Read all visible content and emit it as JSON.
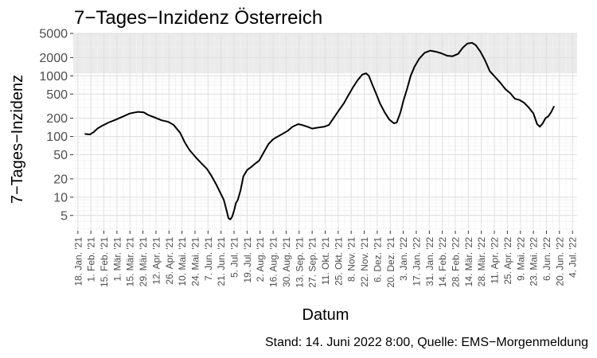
{
  "chart_data": {
    "type": "line",
    "title": "7−Tages−Inzidenz Österreich",
    "xlabel": "Datum",
    "ylabel": "7−Tages−Inzidenz",
    "caption": "Stand: 14. Juni 2022 8:00, Quelle: EMS−Morgenmeldung",
    "y_scale": "log",
    "ylim": [
      2.8,
      5000
    ],
    "xlim": [
      "2021-01-13",
      "2022-07-09"
    ],
    "grid": true,
    "legend": "none",
    "shaded_band": {
      "from": 1100,
      "to": 5000,
      "color": "#ebebeb"
    },
    "y_ticks": [
      5,
      10,
      20,
      50,
      100,
      200,
      500,
      1000,
      2000,
      5000
    ],
    "y_tick_labels": [
      "5",
      "10",
      "20",
      "50",
      "100",
      "200",
      "500",
      "1000",
      "2000",
      "5000"
    ],
    "x_ticks": [
      "2021-01-18",
      "2021-02-01",
      "2021-02-15",
      "2021-03-01",
      "2021-03-15",
      "2021-03-29",
      "2021-04-12",
      "2021-04-26",
      "2021-05-10",
      "2021-05-24",
      "2021-06-07",
      "2021-06-21",
      "2021-07-05",
      "2021-07-19",
      "2021-08-02",
      "2021-08-16",
      "2021-08-30",
      "2021-09-13",
      "2021-09-27",
      "2021-10-11",
      "2021-10-25",
      "2021-11-08",
      "2021-11-22",
      "2021-12-06",
      "2021-12-20",
      "2022-01-03",
      "2022-01-17",
      "2022-01-31",
      "2022-02-14",
      "2022-02-28",
      "2022-03-14",
      "2022-03-28",
      "2022-04-11",
      "2022-04-25",
      "2022-05-09",
      "2022-05-23",
      "2022-06-06",
      "2022-06-20",
      "2022-07-04"
    ],
    "x_tick_labels": [
      "18. Jan. '21",
      "1. Feb. '21",
      "15. Feb. '21",
      "1. Mär. '21",
      "15. Mär. '21",
      "29. Mär. '21",
      "12. Apr. '21",
      "26. Apr. '21",
      "10. Mai. '21",
      "24. Mai. '21",
      "7. Jun. '21",
      "21. Jun. '21",
      "5. Jul. '21",
      "19. Jul. '21",
      "2. Aug. '21",
      "16. Aug. '21",
      "30. Aug. '21",
      "13. Sep. '21",
      "27. Sep. '21",
      "11. Okt. '21",
      "25. Okt. '21",
      "8. Nov. '21",
      "22. Nov. '21",
      "6. Dez. '21",
      "20. Dez. '21",
      "3. Jan. '22",
      "17. Jan. '22",
      "31. Jan. '22",
      "14. Feb. '22",
      "28. Feb. '22",
      "14. Mär. '22",
      "28. Mär. '22",
      "11. Apr. '22",
      "25. Apr. '22",
      "9. Mai. '22",
      "23. Mai. '22",
      "6. Jun. '22",
      "20. Jun. '22",
      "4. Jul. '22"
    ],
    "series": [
      {
        "color": "#000000",
        "points": [
          [
            "2021-01-26",
            110
          ],
          [
            "2021-01-31",
            108
          ],
          [
            "2021-02-04",
            118
          ],
          [
            "2021-02-08",
            135
          ],
          [
            "2021-02-13",
            150
          ],
          [
            "2021-02-20",
            170
          ],
          [
            "2021-02-28",
            190
          ],
          [
            "2021-03-08",
            215
          ],
          [
            "2021-03-15",
            240
          ],
          [
            "2021-03-24",
            255
          ],
          [
            "2021-03-30",
            250
          ],
          [
            "2021-04-04",
            225
          ],
          [
            "2021-04-11",
            205
          ],
          [
            "2021-04-18",
            185
          ],
          [
            "2021-04-25",
            175
          ],
          [
            "2021-05-01",
            155
          ],
          [
            "2021-05-08",
            115
          ],
          [
            "2021-05-13",
            80
          ],
          [
            "2021-05-18",
            60
          ],
          [
            "2021-05-25",
            45
          ],
          [
            "2021-05-31",
            36
          ],
          [
            "2021-06-06",
            29
          ],
          [
            "2021-06-11",
            22
          ],
          [
            "2021-06-16",
            16
          ],
          [
            "2021-06-20",
            12
          ],
          [
            "2021-06-24",
            9
          ],
          [
            "2021-06-27",
            6
          ],
          [
            "2021-06-29",
            4.5
          ],
          [
            "2021-07-01",
            4.3
          ],
          [
            "2021-07-03",
            4.8
          ],
          [
            "2021-07-05",
            6
          ],
          [
            "2021-07-07",
            8
          ],
          [
            "2021-07-09",
            9
          ],
          [
            "2021-07-12",
            13
          ],
          [
            "2021-07-15",
            22
          ],
          [
            "2021-07-19",
            28
          ],
          [
            "2021-07-23",
            31
          ],
          [
            "2021-07-27",
            35
          ],
          [
            "2021-08-01",
            40
          ],
          [
            "2021-08-06",
            55
          ],
          [
            "2021-08-11",
            75
          ],
          [
            "2021-08-16",
            90
          ],
          [
            "2021-08-21",
            100
          ],
          [
            "2021-08-26",
            110
          ],
          [
            "2021-09-01",
            125
          ],
          [
            "2021-09-06",
            145
          ],
          [
            "2021-09-12",
            160
          ],
          [
            "2021-09-16",
            155
          ],
          [
            "2021-09-22",
            145
          ],
          [
            "2021-09-27",
            135
          ],
          [
            "2021-10-03",
            140
          ],
          [
            "2021-10-10",
            145
          ],
          [
            "2021-10-15",
            155
          ],
          [
            "2021-10-20",
            200
          ],
          [
            "2021-10-25",
            260
          ],
          [
            "2021-10-31",
            350
          ],
          [
            "2021-11-05",
            480
          ],
          [
            "2021-11-10",
            650
          ],
          [
            "2021-11-15",
            850
          ],
          [
            "2021-11-20",
            1050
          ],
          [
            "2021-11-24",
            1100
          ],
          [
            "2021-11-27",
            1000
          ],
          [
            "2021-12-01",
            700
          ],
          [
            "2021-12-05",
            500
          ],
          [
            "2021-12-09",
            350
          ],
          [
            "2021-12-14",
            250
          ],
          [
            "2021-12-19",
            190
          ],
          [
            "2021-12-24",
            165
          ],
          [
            "2021-12-27",
            170
          ],
          [
            "2021-12-31",
            250
          ],
          [
            "2022-01-03",
            380
          ],
          [
            "2022-01-07",
            600
          ],
          [
            "2022-01-11",
            1000
          ],
          [
            "2022-01-15",
            1400
          ],
          [
            "2022-01-20",
            1900
          ],
          [
            "2022-01-26",
            2400
          ],
          [
            "2022-02-01",
            2600
          ],
          [
            "2022-02-07",
            2500
          ],
          [
            "2022-02-13",
            2350
          ],
          [
            "2022-02-19",
            2150
          ],
          [
            "2022-02-25",
            2100
          ],
          [
            "2022-03-03",
            2300
          ],
          [
            "2022-03-08",
            2900
          ],
          [
            "2022-03-13",
            3400
          ],
          [
            "2022-03-18",
            3500
          ],
          [
            "2022-03-22",
            3200
          ],
          [
            "2022-03-27",
            2500
          ],
          [
            "2022-04-01",
            1800
          ],
          [
            "2022-04-06",
            1200
          ],
          [
            "2022-04-12",
            950
          ],
          [
            "2022-04-18",
            750
          ],
          [
            "2022-04-23",
            600
          ],
          [
            "2022-04-28",
            520
          ],
          [
            "2022-05-03",
            420
          ],
          [
            "2022-05-08",
            400
          ],
          [
            "2022-05-13",
            360
          ],
          [
            "2022-05-18",
            300
          ],
          [
            "2022-05-23",
            240
          ],
          [
            "2022-05-27",
            160
          ],
          [
            "2022-05-30",
            145
          ],
          [
            "2022-06-02",
            165
          ],
          [
            "2022-06-05",
            200
          ],
          [
            "2022-06-08",
            215
          ],
          [
            "2022-06-11",
            250
          ],
          [
            "2022-06-14",
            310
          ]
        ]
      }
    ]
  }
}
